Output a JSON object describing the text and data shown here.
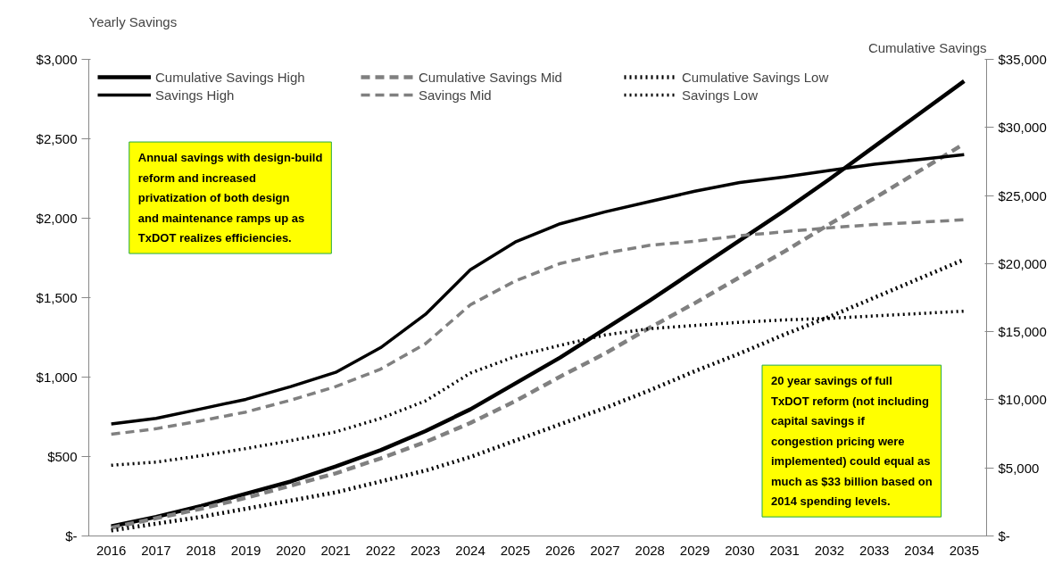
{
  "chart_data": {
    "type": "line",
    "ylabel": "Yearly Savings",
    "y2label": "Cumulative Savings",
    "categories": [
      "2016",
      "2017",
      "2018",
      "2019",
      "2020",
      "2021",
      "2022",
      "2023",
      "2024",
      "2025",
      "2026",
      "2027",
      "2028",
      "2029",
      "2030",
      "2031",
      "2032",
      "2033",
      "2034",
      "2035"
    ],
    "series": [
      {
        "name": "Cumulative Savings High",
        "axis": "y2",
        "color": "#000000",
        "line_style": "solid",
        "values": [
          700,
          1400,
          2200,
          3100,
          4000,
          5100,
          6300,
          7700,
          9300,
          11200,
          13100,
          15200,
          17300,
          19500,
          21700,
          23900,
          26200,
          28600,
          31000,
          33400
        ]
      },
      {
        "name": "Cumulative Savings Mid",
        "axis": "y2",
        "color": "#808080",
        "line_style": "dashed",
        "values": [
          600,
          1300,
          2000,
          2800,
          3700,
          4600,
          5700,
          6900,
          8300,
          9900,
          11700,
          13400,
          15300,
          17100,
          19000,
          20900,
          22900,
          24800,
          26800,
          28800
        ]
      },
      {
        "name": "Cumulative Savings Low",
        "axis": "y2",
        "color": "#000000",
        "line_style": "dotted",
        "values": [
          400,
          900,
          1400,
          2000,
          2600,
          3200,
          4000,
          4800,
          5800,
          7000,
          8200,
          9400,
          10700,
          12100,
          13400,
          14800,
          16100,
          17500,
          18900,
          20300
        ]
      },
      {
        "name": "Savings High",
        "color": "#000000",
        "line_style": "solid",
        "values": [
          705,
          740,
          800,
          860,
          940,
          1030,
          1185,
          1395,
          1675,
          1850,
          1965,
          2040,
          2105,
          2170,
          2225,
          2260,
          2300,
          2340,
          2370,
          2400
        ]
      },
      {
        "name": "Savings Mid",
        "color": "#808080",
        "line_style": "dashed",
        "values": [
          640,
          675,
          725,
          780,
          855,
          940,
          1050,
          1210,
          1455,
          1605,
          1715,
          1780,
          1830,
          1855,
          1890,
          1915,
          1940,
          1960,
          1975,
          1990
        ]
      },
      {
        "name": "Savings Low",
        "color": "#000000",
        "line_style": "dotted",
        "values": [
          445,
          465,
          505,
          550,
          600,
          655,
          740,
          850,
          1025,
          1130,
          1200,
          1265,
          1305,
          1325,
          1345,
          1360,
          1370,
          1385,
          1400,
          1415
        ]
      }
    ],
    "ylim": [
      0,
      3000
    ],
    "yticks": [
      {
        "value": 0,
        "label": "$-"
      },
      {
        "value": 500,
        "label": "$500"
      },
      {
        "value": 1000,
        "label": "$1,000"
      },
      {
        "value": 1500,
        "label": "$1,500"
      },
      {
        "value": 2000,
        "label": "$2,000"
      },
      {
        "value": 2500,
        "label": "$2,500"
      },
      {
        "value": 3000,
        "label": "$3,000"
      }
    ],
    "y2lim": [
      0,
      35000
    ],
    "y2ticks": [
      {
        "value": 0,
        "label": "$-"
      },
      {
        "value": 5000,
        "label": "$5,000"
      },
      {
        "value": 10000,
        "label": "$10,000"
      },
      {
        "value": 15000,
        "label": "$15,000"
      },
      {
        "value": 20000,
        "label": "$20,000"
      },
      {
        "value": 25000,
        "label": "$25,000"
      },
      {
        "value": 30000,
        "label": "$30,000"
      },
      {
        "value": 35000,
        "label": "$35,000"
      }
    ],
    "grid": false,
    "legend": "top left",
    "annotations": [
      "Annual savings with design-build reform and increased privatization  of both design and maintenance ramps up as TxDOT realizes efficiencies.",
      "20 year savings of full TxDOT reform (not including capital savings if congestion pricing were implemented) could equal as much as $33 billion based on 2014 spending levels."
    ]
  }
}
